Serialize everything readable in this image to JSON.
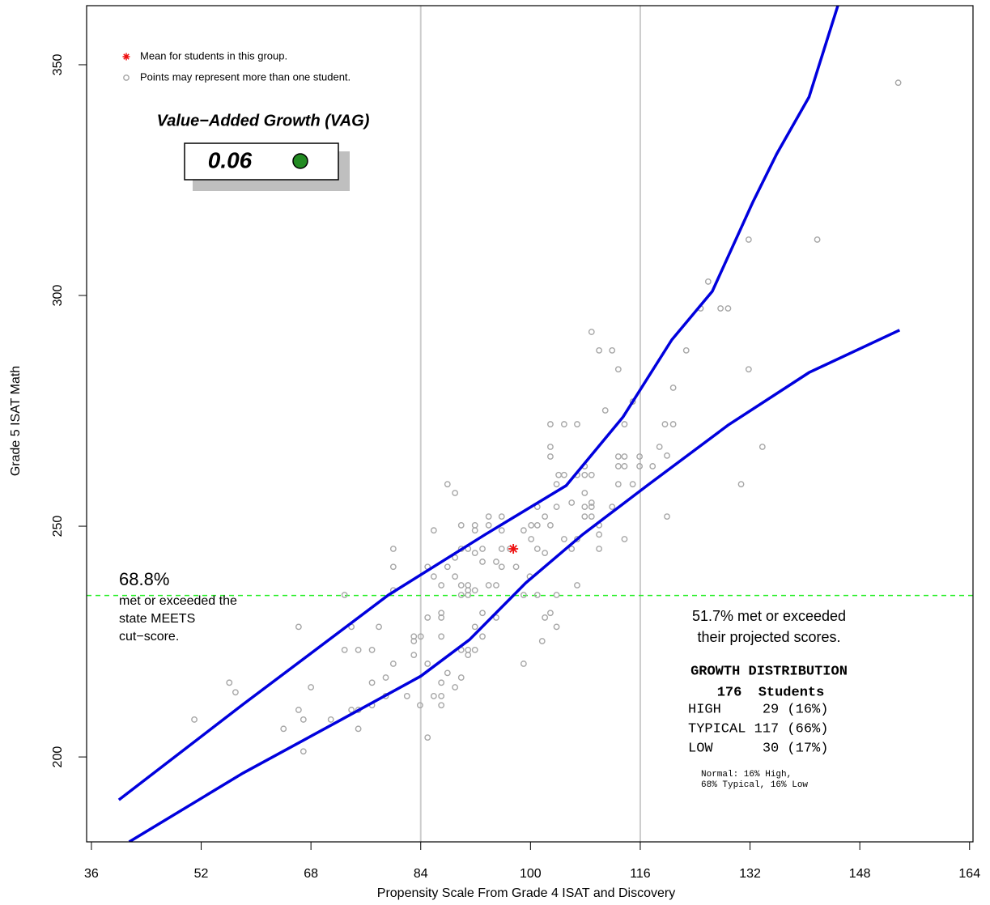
{
  "chart_data": {
    "type": "scatter",
    "x_label": "Propensity Scale From Grade 4 ISAT and Discovery",
    "y_label": "Grade 5 ISAT Math",
    "xlim": [
      35.3,
      164.5
    ],
    "ylim": [
      181.6,
      362.8
    ],
    "xticks": [
      36,
      52,
      68,
      84,
      100,
      116,
      132,
      148,
      164
    ],
    "yticks": [
      200,
      250,
      300,
      350
    ],
    "point_color": "#a6a6a6",
    "x": [
      153.6,
      141.8,
      131.8,
      125.9,
      124.8,
      127.7,
      128.8,
      108.9,
      110.0,
      111.9,
      122.7,
      112.8,
      131.8,
      120.8,
      114.9,
      110.9,
      102.9,
      104.9,
      106.8,
      113.7,
      119.6,
      120.8,
      102.9,
      102.9,
      133.8,
      118.8,
      119.9,
      112.8,
      113.7,
      115.9,
      112.8,
      113.7,
      115.9,
      117.8,
      107.9,
      104.1,
      104.9,
      106.8,
      107.9,
      108.9,
      103.8,
      112.8,
      114.9,
      130.7,
      87.9,
      89.0,
      107.9,
      108.9,
      108.9,
      106.0,
      103.8,
      101.0,
      111.9,
      107.9,
      93.9,
      95.8,
      102.1,
      108.9,
      107.9,
      119.9,
      89.9,
      91.9,
      93.9,
      100.1,
      101.0,
      102.9,
      110.0,
      91.9,
      85.9,
      95.8,
      99.0,
      100.1,
      104.9,
      106.8,
      113.7,
      110.0,
      89.9,
      90.9,
      93.0,
      95.8,
      97.0,
      101.0,
      106.0,
      110.0,
      80.0,
      102.1,
      91.9,
      89.0,
      95.0,
      95.8,
      93.0,
      85.0,
      87.9,
      80.0,
      97.9,
      99.9,
      85.9,
      89.0,
      89.9,
      87.0,
      90.9,
      93.9,
      95.0,
      106.8,
      80.0,
      90.9,
      91.9,
      89.9,
      90.9,
      101.0,
      72.9,
      99.0,
      103.8,
      87.0,
      87.0,
      85.0,
      93.0,
      95.0,
      102.9,
      102.1,
      66.2,
      73.9,
      77.9,
      91.9,
      103.8,
      83.0,
      83.0,
      84.0,
      87.0,
      93.0,
      101.7,
      72.9,
      74.9,
      76.9,
      89.9,
      90.9,
      91.9,
      90.9,
      83.0,
      80.0,
      85.0,
      99.0,
      89.9,
      87.9,
      78.9,
      87.0,
      87.0,
      89.0,
      68.0,
      56.1,
      57.0,
      76.9,
      78.9,
      82.0,
      76.9,
      85.9,
      83.9,
      87.0,
      73.9,
      74.9,
      66.2,
      70.9,
      66.9,
      51.0,
      74.9,
      64.0,
      85.0,
      66.9
    ],
    "values": [
      346.1,
      312.1,
      312.1,
      303.0,
      297.2,
      297.2,
      297.2,
      292.1,
      288.1,
      288.1,
      288.1,
      284.0,
      284.0,
      280.0,
      277.0,
      275.1,
      272.1,
      272.1,
      272.1,
      272.1,
      272.1,
      272.1,
      267.2,
      265.1,
      267.2,
      267.2,
      265.3,
      265.1,
      265.1,
      265.1,
      263.0,
      263.0,
      263.0,
      263.0,
      263.0,
      261.1,
      261.1,
      261.1,
      261.1,
      261.1,
      259.1,
      259.1,
      259.1,
      259.1,
      259.1,
      257.2,
      257.2,
      255.1,
      254.2,
      255.1,
      254.2,
      254.2,
      254.2,
      254.2,
      252.1,
      252.1,
      252.1,
      252.1,
      252.1,
      252.1,
      250.2,
      250.2,
      250.2,
      250.2,
      250.2,
      250.2,
      250.2,
      249.1,
      249.1,
      249.1,
      249.1,
      247.2,
      247.2,
      247.2,
      247.2,
      248.2,
      245.1,
      245.1,
      245.1,
      245.1,
      245.1,
      245.1,
      245.1,
      245.1,
      245.1,
      244.2,
      244.2,
      243.2,
      242.3,
      241.2,
      242.3,
      241.2,
      241.2,
      241.2,
      241.2,
      239.1,
      239.1,
      239.1,
      237.2,
      237.2,
      237.2,
      237.2,
      237.2,
      237.2,
      236.1,
      236.1,
      236.1,
      235.1,
      235.1,
      235.1,
      235.1,
      235.1,
      235.1,
      231.2,
      230.2,
      230.2,
      231.2,
      230.2,
      231.2,
      230.2,
      228.2,
      228.2,
      228.2,
      228.2,
      228.2,
      226.1,
      225.1,
      226.1,
      226.1,
      226.1,
      225.1,
      223.2,
      223.2,
      223.2,
      223.2,
      223.2,
      223.2,
      222.1,
      222.1,
      220.2,
      220.2,
      220.2,
      217.2,
      218.2,
      217.2,
      216.1,
      213.2,
      215.1,
      215.1,
      216.1,
      214.0,
      216.1,
      213.2,
      213.2,
      211.2,
      213.2,
      211.2,
      211.2,
      210.2,
      210.2,
      210.2,
      208.1,
      208.1,
      208.1,
      206.1,
      206.1,
      204.2,
      201.2
    ],
    "mean": {
      "x": 97.5,
      "y": 245.1,
      "color": "#ee1111"
    },
    "curves": [
      {
        "color": "#0000dd",
        "x": [
          40.0,
          58.1,
          79.3,
          93.4,
          105.2,
          113.5,
          120.6,
          126.5,
          132.4,
          135.9,
          140.6,
          144.8
        ],
        "values": [
          190.7,
          211.4,
          235.1,
          248.2,
          258.8,
          273.7,
          290.4,
          300.9,
          320.2,
          330.7,
          343.0,
          362.8
        ]
      },
      {
        "color": "#0000dd",
        "x": [
          41.5,
          58.1,
          72.2,
          84.0,
          91.1,
          99.3,
          107.6,
          117.0,
          128.8,
          140.6,
          153.8
        ],
        "values": [
          181.6,
          196.5,
          207.9,
          217.5,
          225.4,
          237.7,
          248.2,
          258.8,
          271.9,
          283.3,
          292.5
        ]
      }
    ],
    "vlines": [
      84,
      116
    ],
    "vline_color": "#cccccc",
    "hline": 235,
    "hline_color": "#22ee22",
    "legend": [
      "Mean for students in this group.",
      "Points may represent more than one student."
    ],
    "vag_title": "Value−Added Growth (VAG)",
    "vag_value": 0.06,
    "vag_color": "#228b22",
    "meets_pct": "68.8%",
    "meets_text": [
      "met or exceeded the",
      "state MEETS",
      "cut−score."
    ],
    "projected_text": [
      "51.7% met or exceeded",
      "their projected scores."
    ],
    "growth_title": "GROWTH DISTRIBUTION",
    "growth_students": "176  Students",
    "growth_rows": [
      "HIGH     29 (16%)",
      "TYPICAL 117 (66%)",
      "LOW      30 (17%)"
    ],
    "normal_note": [
      "Normal: 16% High,",
      "68% Typical, 16% Low"
    ]
  }
}
